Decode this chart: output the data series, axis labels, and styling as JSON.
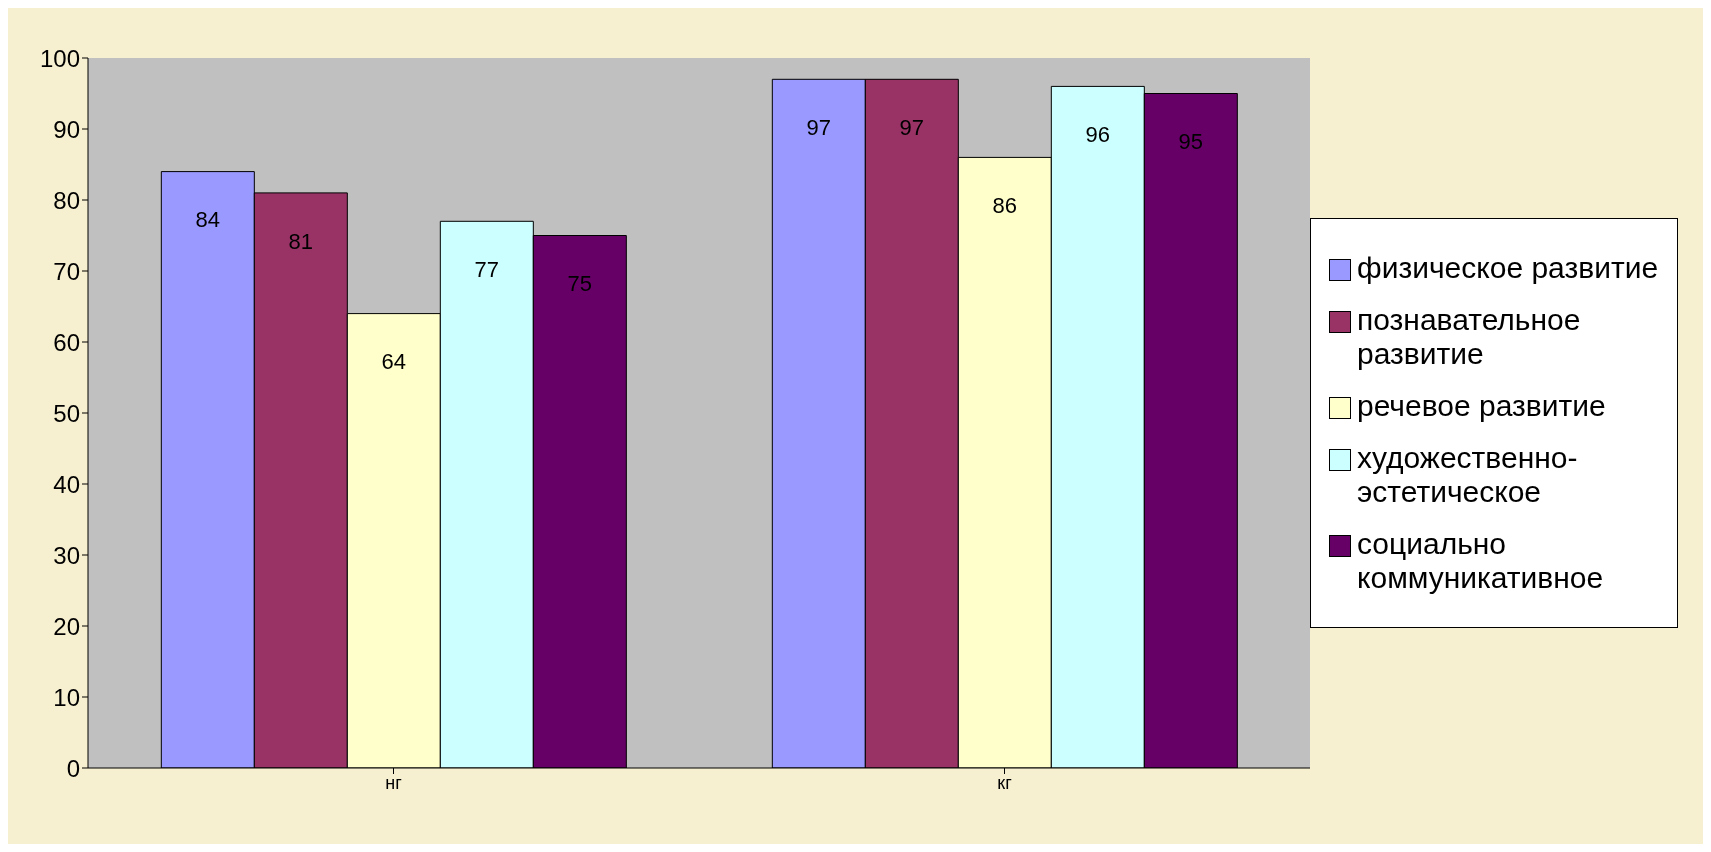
{
  "chart_data": {
    "type": "bar",
    "categories": [
      "нг",
      "кг"
    ],
    "series": [
      {
        "name": "физическое  развитие",
        "color": "#9999ff",
        "values": [
          84,
          97
        ]
      },
      {
        "name": "познавательное развитие",
        "color": "#993366",
        "values": [
          81,
          97
        ]
      },
      {
        "name": "речевое  развитие",
        "color": "#ffffcc",
        "values": [
          64,
          86
        ]
      },
      {
        "name": "художественно-эстетическое",
        "color": "#ccffff",
        "values": [
          77,
          96
        ]
      },
      {
        "name": "социально коммуникативное",
        "color": "#660066",
        "values": [
          75,
          95
        ]
      }
    ],
    "ylim": [
      0,
      100
    ],
    "yticks": [
      0,
      10,
      20,
      30,
      40,
      50,
      60,
      70,
      80,
      90,
      100
    ],
    "grid": false,
    "legend": "right",
    "data_labels": true
  }
}
